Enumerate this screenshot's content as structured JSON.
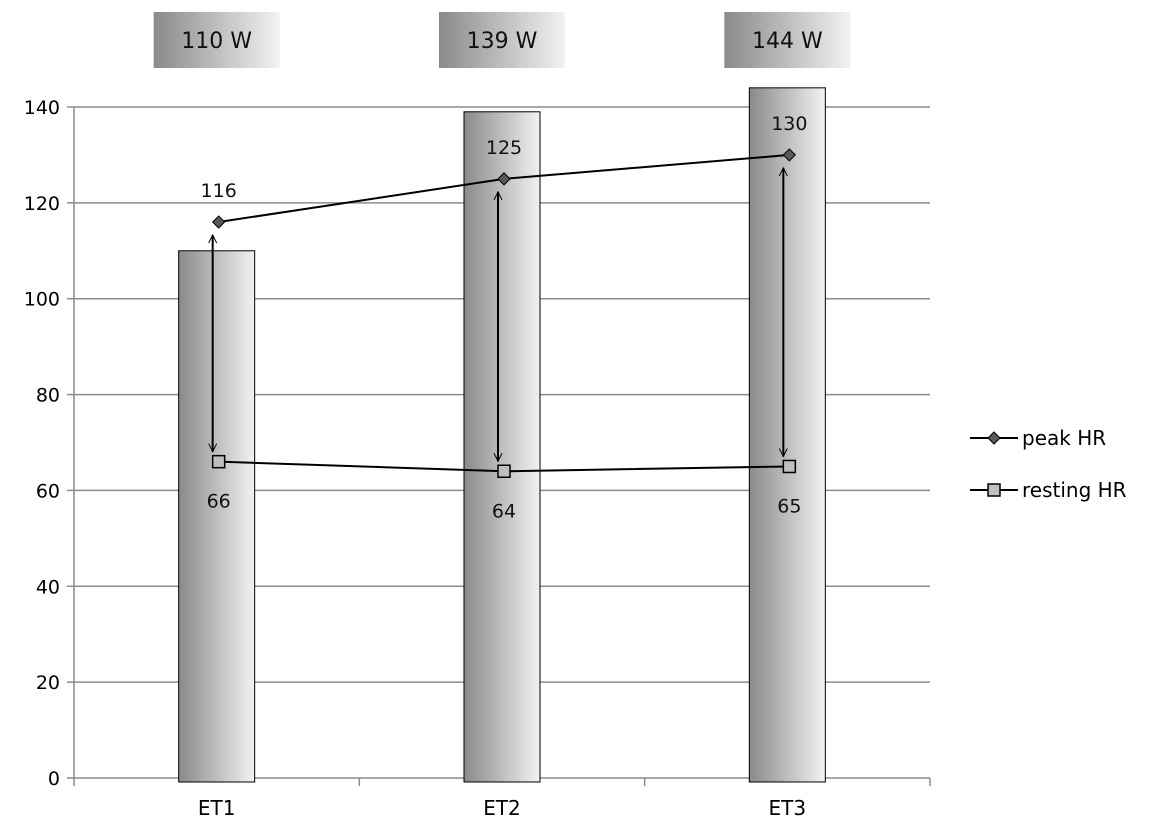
{
  "chart_data": {
    "type": "bar",
    "categories": [
      "ET1",
      "ET2",
      "ET3"
    ],
    "bars": {
      "values": [
        110,
        139,
        144
      ],
      "labels": [
        "110 W",
        "139 W",
        "144 W"
      ]
    },
    "series": [
      {
        "name": "peak HR",
        "values": [
          116,
          125,
          130
        ],
        "marker": "diamond",
        "data_labels": [
          "116",
          "125",
          "130"
        ]
      },
      {
        "name": "resting HR",
        "values": [
          66,
          64,
          65
        ],
        "marker": "square",
        "data_labels": [
          "66",
          "64",
          "65"
        ]
      }
    ],
    "ylim": [
      0,
      140
    ],
    "yticks": [
      "0",
      "20",
      "40",
      "60",
      "80",
      "100",
      "120",
      "140"
    ],
    "grid": true,
    "legend_position": "right",
    "arrows_between_series": true,
    "colors": {
      "gridline": "#8c8c8c",
      "bar_dark": "#8a8a8a",
      "bar_light": "#f2f2f2",
      "peak_marker": "#595959",
      "resting_marker": "#bfbfbf",
      "line": "#000000"
    }
  }
}
